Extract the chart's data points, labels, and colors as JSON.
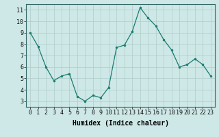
{
  "x": [
    0,
    1,
    2,
    3,
    4,
    5,
    6,
    7,
    8,
    9,
    10,
    11,
    12,
    13,
    14,
    15,
    16,
    17,
    18,
    19,
    20,
    21,
    22,
    23
  ],
  "y": [
    9.0,
    7.8,
    6.0,
    4.8,
    5.2,
    5.4,
    3.4,
    3.0,
    3.5,
    3.3,
    4.2,
    7.7,
    7.9,
    9.1,
    11.2,
    10.3,
    9.6,
    8.4,
    7.5,
    6.0,
    6.2,
    6.7,
    6.2,
    5.2
  ],
  "line_color": "#1a7a6e",
  "marker_color": "#1a7a6e",
  "bg_color": "#cde8e6",
  "grid_color": "#aecccc",
  "xlabel": "Humidex (Indice chaleur)",
  "xlabel_fontsize": 7,
  "tick_label_fontsize": 6,
  "xlim": [
    -0.5,
    23.5
  ],
  "ylim": [
    2.5,
    11.5
  ],
  "yticks": [
    3,
    4,
    5,
    6,
    7,
    8,
    9,
    10,
    11
  ],
  "xtick_labels": [
    "0",
    "1",
    "2",
    "3",
    "4",
    "5",
    "6",
    "7",
    "8",
    "9",
    "10",
    "11",
    "12",
    "13",
    "14",
    "15",
    "16",
    "17",
    "18",
    "19",
    "20",
    "21",
    "22",
    "23"
  ]
}
